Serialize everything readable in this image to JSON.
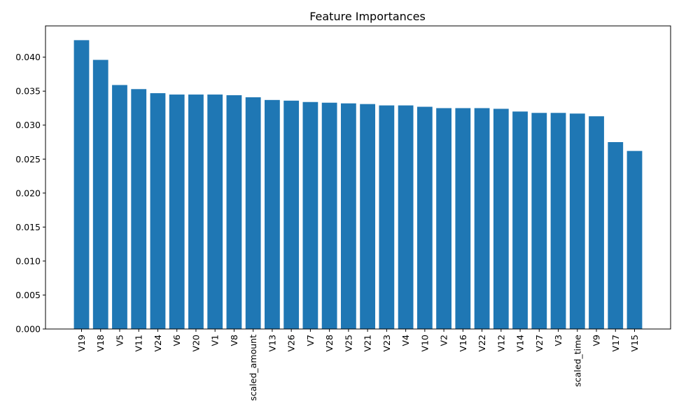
{
  "chart_data": {
    "type": "bar",
    "title": "Feature Importances",
    "xlabel": "",
    "ylabel": "",
    "categories": [
      "V19",
      "V18",
      "V5",
      "V11",
      "V24",
      "V6",
      "V20",
      "V1",
      "V8",
      "scaled_amount",
      "V13",
      "V26",
      "V7",
      "V28",
      "V25",
      "V21",
      "V23",
      "V4",
      "V10",
      "V2",
      "V16",
      "V22",
      "V12",
      "V14",
      "V27",
      "V3",
      "scaled_time",
      "V9",
      "V17",
      "V15"
    ],
    "values": [
      0.0425,
      0.0396,
      0.0359,
      0.0353,
      0.0347,
      0.0345,
      0.0345,
      0.0345,
      0.0344,
      0.0341,
      0.0337,
      0.0336,
      0.0334,
      0.0333,
      0.0332,
      0.0331,
      0.0329,
      0.0329,
      0.0327,
      0.0325,
      0.0325,
      0.0325,
      0.0324,
      0.032,
      0.0318,
      0.0318,
      0.0317,
      0.0313,
      0.0275,
      0.0262
    ],
    "ylim": [
      0,
      0.0446
    ],
    "yticks": [
      0.0,
      0.005,
      0.01,
      0.015,
      0.02,
      0.025,
      0.03,
      0.035,
      0.04
    ],
    "ytick_labels": [
      "0.000",
      "0.005",
      "0.010",
      "0.015",
      "0.020",
      "0.025",
      "0.030",
      "0.035",
      "0.040"
    ],
    "grid": false,
    "legend": "none",
    "colors": {
      "bar": "#1f77b4"
    }
  }
}
